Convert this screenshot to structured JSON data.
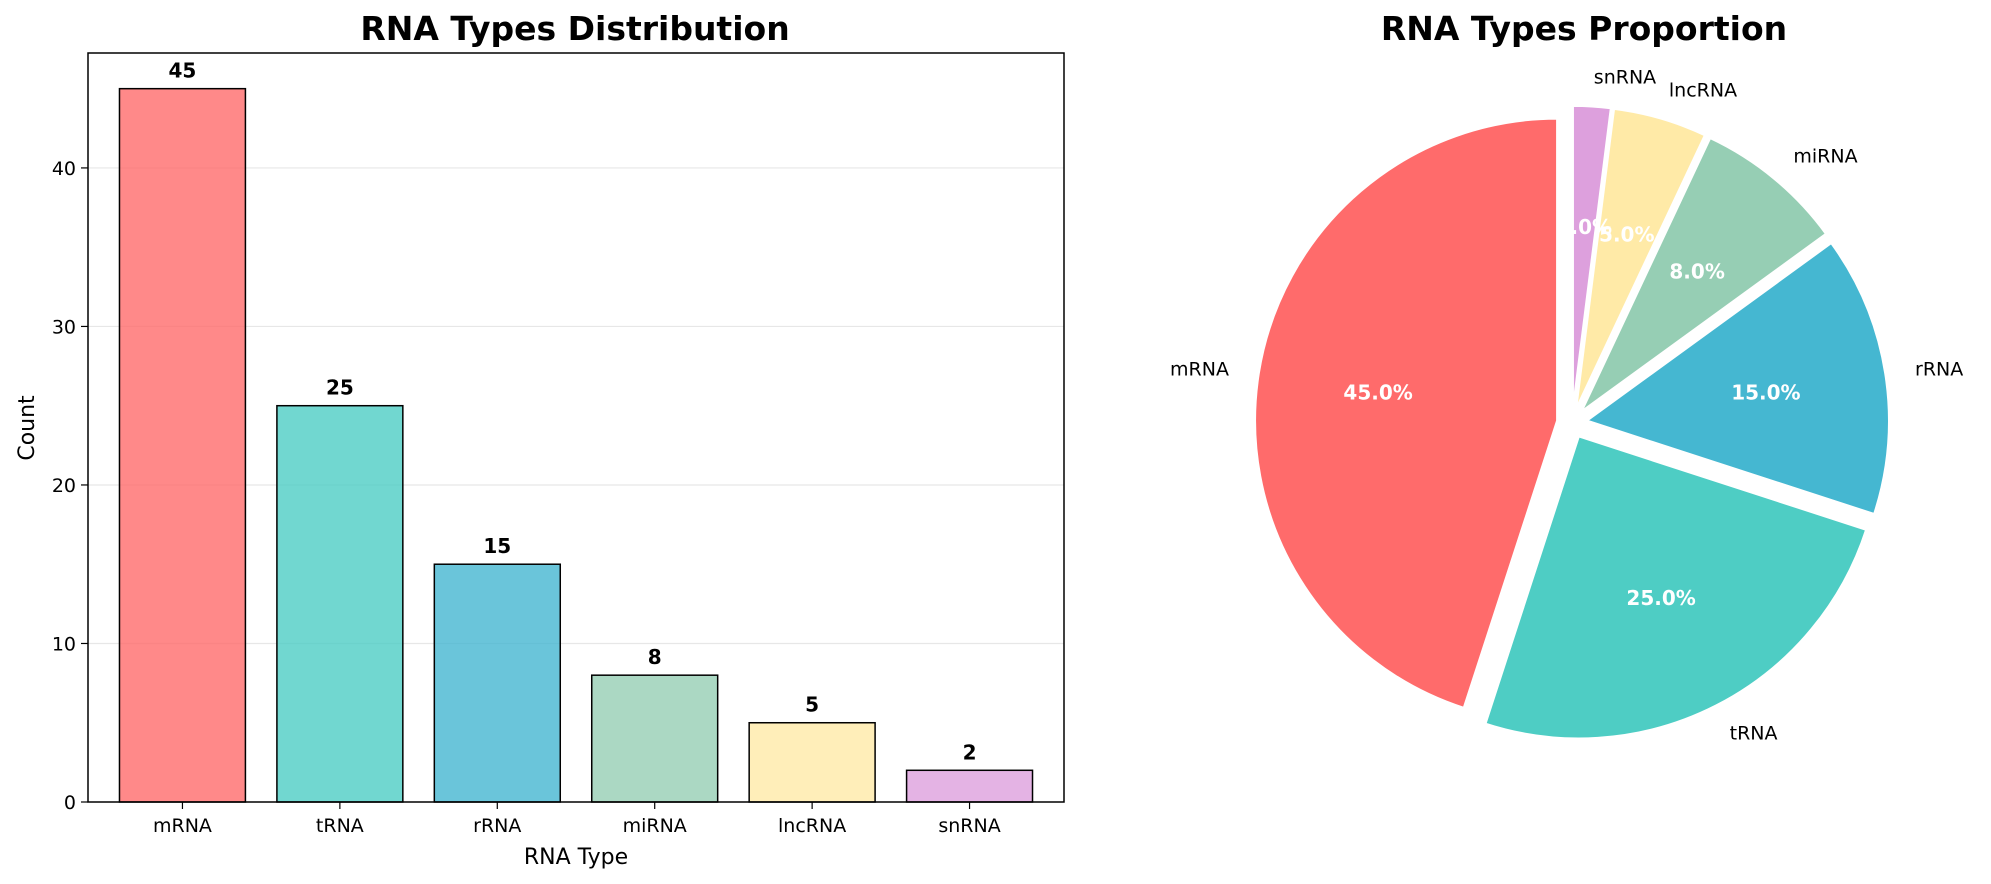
{
  "chart_data": [
    {
      "type": "bar",
      "title": "RNA Types Distribution",
      "xlabel": "RNA Type",
      "ylabel": "Count",
      "categories": [
        "mRNA",
        "tRNA",
        "rRNA",
        "miRNA",
        "lncRNA",
        "snRNA"
      ],
      "values": [
        45,
        25,
        15,
        8,
        5,
        2
      ],
      "value_labels": [
        "45",
        "25",
        "15",
        "8",
        "5",
        "2"
      ],
      "yticks": [
        0,
        10,
        20,
        30,
        40
      ],
      "ylim": [
        0,
        47.25
      ],
      "grid": "y",
      "colors": [
        "#FF6B6B",
        "#4ECDC4",
        "#45B7D1",
        "#96CEB4",
        "#FFEAA7",
        "#DDA0DD"
      ],
      "bar_opacity": 0.8,
      "edge_color": "#000000"
    },
    {
      "type": "pie",
      "title": "RNA Types Proportion",
      "labels": [
        "mRNA",
        "tRNA",
        "rRNA",
        "miRNA",
        "lncRNA",
        "snRNA"
      ],
      "values": [
        45,
        25,
        15,
        8,
        5,
        2
      ],
      "percent_labels": [
        "45.0%",
        "25.0%",
        "15.0%",
        "8.0%",
        "5.0%",
        "2.0%"
      ],
      "colors": [
        "#FF6B6B",
        "#4ECDC4",
        "#45B7D1",
        "#96CEB4",
        "#FFEAA7",
        "#DDA0DD"
      ],
      "start_angle": 90,
      "direction": "counterclockwise",
      "explode": 0.05
    }
  ]
}
